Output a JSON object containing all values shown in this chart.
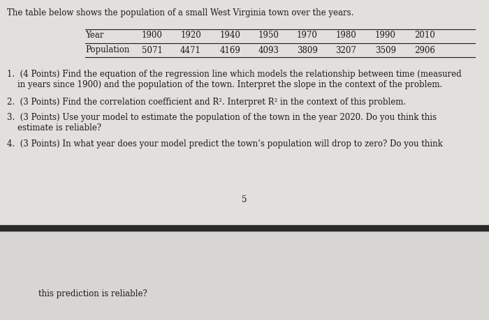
{
  "intro_text": "The table below shows the population of a small West Virginia town over the years.",
  "table_header": [
    "Year",
    "1900",
    "1920",
    "1940",
    "1950",
    "1970",
    "1980",
    "1990",
    "2010"
  ],
  "table_row": [
    "Population",
    "5071",
    "4471",
    "4169",
    "4093",
    "3809",
    "3207",
    "3509",
    "2906"
  ],
  "q1_line1": "1.  (4 Points) Find the equation of the regression line which models the relationship between time (measured",
  "q1_line2": "    in years since 1900) and the population of the town. Interpret the slope in the context of the problem.",
  "q2_line1": "2.  (3 Points) Find the correlation coefficient and R². Interpret R² in the context of this problem.",
  "q3_line1": "3.  (3 Points) Use your model to estimate the population of the town in the year 2020. Do you think this",
  "q3_line2": "    estimate is reliable?",
  "q4_line1": "4.  (3 Points) In what year does your model predict the town’s population will drop to zero? Do you think",
  "page_number": "5",
  "footer_text": "this prediction is reliable?",
  "bg_color_top": "#e2e0dc",
  "bg_color_bot": "#d8d6d2",
  "divider_color": "#2a2a2a",
  "text_color": "#1a1a1a",
  "fs_main": 8.5,
  "fs_table": 8.5,
  "fig_w": 7.0,
  "fig_h": 4.59,
  "dpi": 100
}
